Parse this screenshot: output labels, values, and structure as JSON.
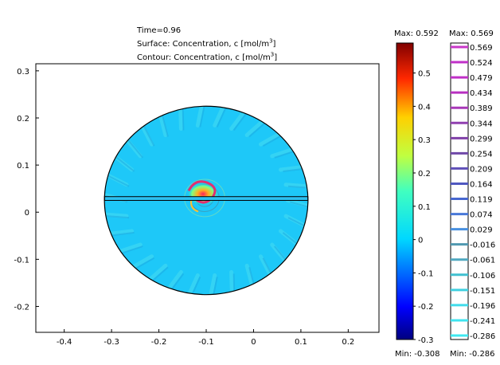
{
  "header": {
    "time": "Time=0.96",
    "surface_prefix": "Surface: Concentration, c [mol/m",
    "contour_prefix": "Contour: Concentration, c [mol/m",
    "unit_exponent": "3",
    "unit_close": "]"
  },
  "chart_data": {
    "type": "heatmap",
    "title": "",
    "xlabel": "",
    "ylabel": "",
    "xlim": [
      -0.46,
      0.265
    ],
    "ylim": [
      -0.255,
      0.315
    ],
    "x_ticks": [
      -0.4,
      -0.3,
      -0.2,
      -0.1,
      0,
      0.1,
      0.2
    ],
    "x_tick_labels": [
      "-0.4",
      "-0.3",
      "-0.2",
      "-0.1",
      "0",
      "0.1",
      "0.2"
    ],
    "y_ticks": [
      0.3,
      0.2,
      0.1,
      0,
      -0.1,
      -0.2
    ],
    "y_tick_labels": [
      "0.3",
      "0.2",
      "0.1",
      "0",
      "-0.1",
      "-0.2"
    ],
    "grid": false,
    "domain": {
      "shape": "circle",
      "center": [
        -0.1,
        0.025
      ],
      "radius": 0.215,
      "divider_line_y": [
        0.025,
        0.033
      ]
    },
    "field_summary": "near-uniform concentration ~0.02 (cyan) with a spiral peak near (-0.1, 0.03) reaching 0.592",
    "surface_colorbar": {
      "max_label": "Max: 0.592",
      "min_label": "Min: -0.308",
      "max": 0.592,
      "min": -0.308,
      "range": [
        -0.3,
        0.59
      ],
      "ticks": [
        0.5,
        0.4,
        0.3,
        0.2,
        0.1,
        0,
        -0.1,
        -0.2,
        -0.3
      ],
      "tick_labels": [
        "0.5",
        "0.4",
        "0.3",
        "0.2",
        "0.1",
        "0",
        "-0.1",
        "-0.2",
        "-0.3"
      ]
    },
    "contour_legend": {
      "max_label": "Max: 0.569",
      "min_label": "Min: -0.286",
      "levels": [
        0.569,
        0.524,
        0.479,
        0.434,
        0.389,
        0.344,
        0.299,
        0.254,
        0.209,
        0.164,
        0.119,
        0.074,
        0.029,
        -0.016,
        -0.061,
        -0.106,
        -0.151,
        -0.196,
        -0.241,
        -0.286
      ],
      "level_labels": [
        "0.569",
        "0.524",
        "0.479",
        "0.434",
        "0.389",
        "0.344",
        "0.299",
        "0.254",
        "0.209",
        "0.164",
        "0.119",
        "0.074",
        "0.029",
        "-0.016",
        "-0.061",
        "-0.106",
        "-0.151",
        "-0.196",
        "-0.241",
        "-0.286"
      ],
      "colors": [
        "#c838c8",
        "#c030c8",
        "#c030c8",
        "#b830c0",
        "#a838b8",
        "#9040b0",
        "#8040a8",
        "#7048a8",
        "#6050b8",
        "#5058c0",
        "#4868d0",
        "#4878d8",
        "#4890e0",
        "#5098b0",
        "#50a8c0",
        "#40c0d0",
        "#40d0e0",
        "#40dcea",
        "#40e4f0",
        "#40e8f0"
      ]
    }
  }
}
